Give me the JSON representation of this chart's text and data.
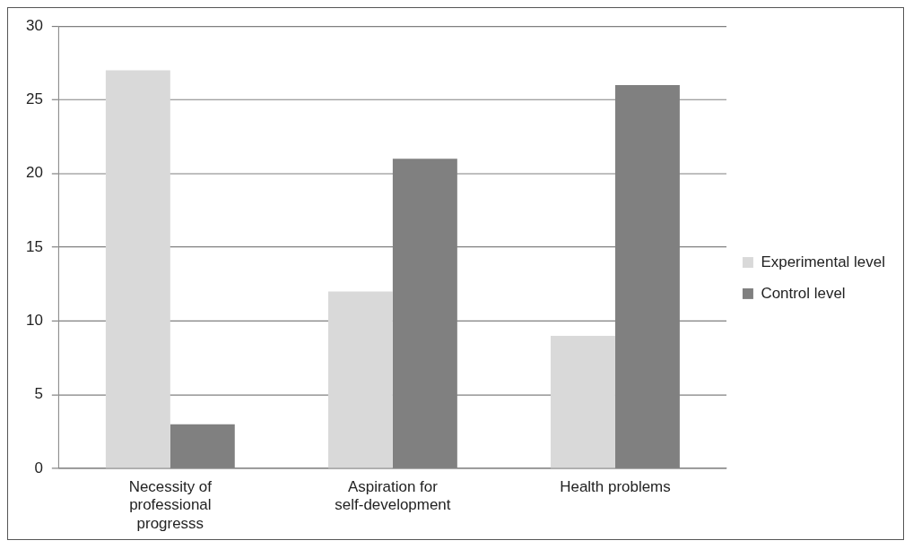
{
  "chart_data": {
    "type": "bar",
    "categories": [
      "Necessity of professional progresss",
      "Aspiration for self-development",
      "Health problems"
    ],
    "series": [
      {
        "name": "Experimental level",
        "color": "#d9d9d9",
        "values": [
          27,
          12,
          9
        ]
      },
      {
        "name": "Control level",
        "color": "#808080",
        "values": [
          3,
          21,
          26
        ]
      }
    ],
    "ylim": [
      0,
      30
    ],
    "yticks": [
      0,
      5,
      10,
      15,
      20,
      25,
      30
    ],
    "grid": "y",
    "legend": "right"
  }
}
